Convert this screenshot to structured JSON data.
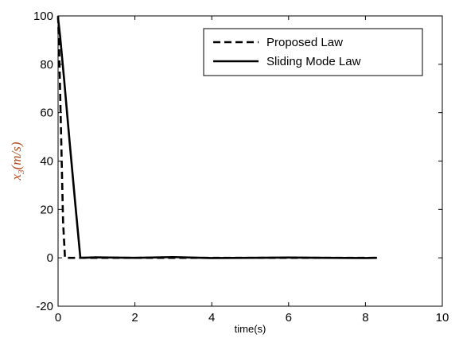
{
  "chart_data": {
    "type": "line",
    "title": "",
    "xlabel": "time(s)",
    "ylabel_symbol": "x",
    "ylabel_subscript": "3",
    "ylabel_units": "(m/s)",
    "xlim": [
      0,
      10
    ],
    "ylim": [
      -20,
      100
    ],
    "xticks": [
      0,
      2,
      4,
      6,
      8,
      10
    ],
    "yticks": [
      -20,
      0,
      20,
      40,
      60,
      80,
      100
    ],
    "grid": false,
    "legend_position": "top-right",
    "series": [
      {
        "name": "Proposed Law",
        "style": "dashed",
        "color": "#000000",
        "x": [
          0.0,
          0.03,
          0.08,
          0.13,
          0.18,
          0.5,
          1.0,
          2.0,
          3.0,
          4.0,
          5.0,
          6.0,
          7.0,
          8.0,
          8.3
        ],
        "y": [
          100,
          85,
          50,
          15,
          0,
          0,
          0,
          0,
          0,
          0,
          0,
          0,
          0,
          0,
          0
        ]
      },
      {
        "name": "Sliding Mode Law",
        "style": "solid",
        "color": "#000000",
        "x": [
          0.0,
          0.05,
          0.15,
          0.3,
          0.45,
          0.58,
          1.0,
          2.0,
          3.0,
          4.0,
          5.0,
          6.0,
          7.0,
          8.0,
          8.3
        ],
        "y": [
          99,
          92,
          75,
          48,
          22,
          0,
          0.2,
          0,
          0.3,
          -0.1,
          0,
          0.1,
          0,
          -0.1,
          0
        ]
      }
    ]
  }
}
